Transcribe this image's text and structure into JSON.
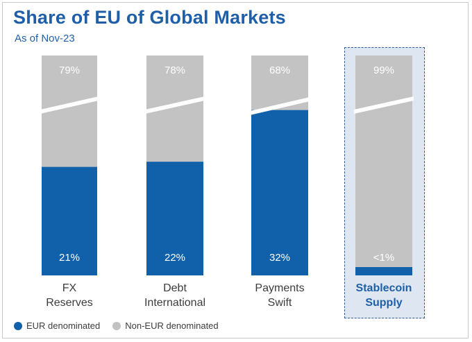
{
  "colors": {
    "eur": "#1060aa",
    "non_eur": "#c3c3c3",
    "title": "#1f5fa8",
    "highlight_bg": "#dde6f1"
  },
  "chart_data": {
    "type": "bar",
    "stacked": true,
    "title": "Share of EU of Global Markets",
    "subtitle": "As of Nov-23",
    "categories": [
      "FX Reserves",
      "Debt International",
      "Payments Swift",
      "Stablecoin Supply"
    ],
    "category_lines": [
      [
        "FX",
        "Reserves"
      ],
      [
        "Debt",
        "International"
      ],
      [
        "Payments",
        "Swift"
      ],
      [
        "Stablecoin",
        "Supply"
      ]
    ],
    "highlighted_category": "Stablecoin Supply",
    "series": [
      {
        "name": "EUR denominated",
        "values": [
          21,
          22,
          32,
          1
        ],
        "labels": [
          "21%",
          "22%",
          "32%",
          "<1%"
        ]
      },
      {
        "name": "Non-EUR denominated",
        "values": [
          79,
          78,
          68,
          99
        ],
        "labels": [
          "79%",
          "78%",
          "68%",
          "99%"
        ]
      }
    ],
    "axis_break": true,
    "grid": false,
    "legend_position": "bottom-left"
  },
  "legend": {
    "eur_label": "EUR denominated",
    "non_eur_label": "Non-EUR denominated"
  }
}
